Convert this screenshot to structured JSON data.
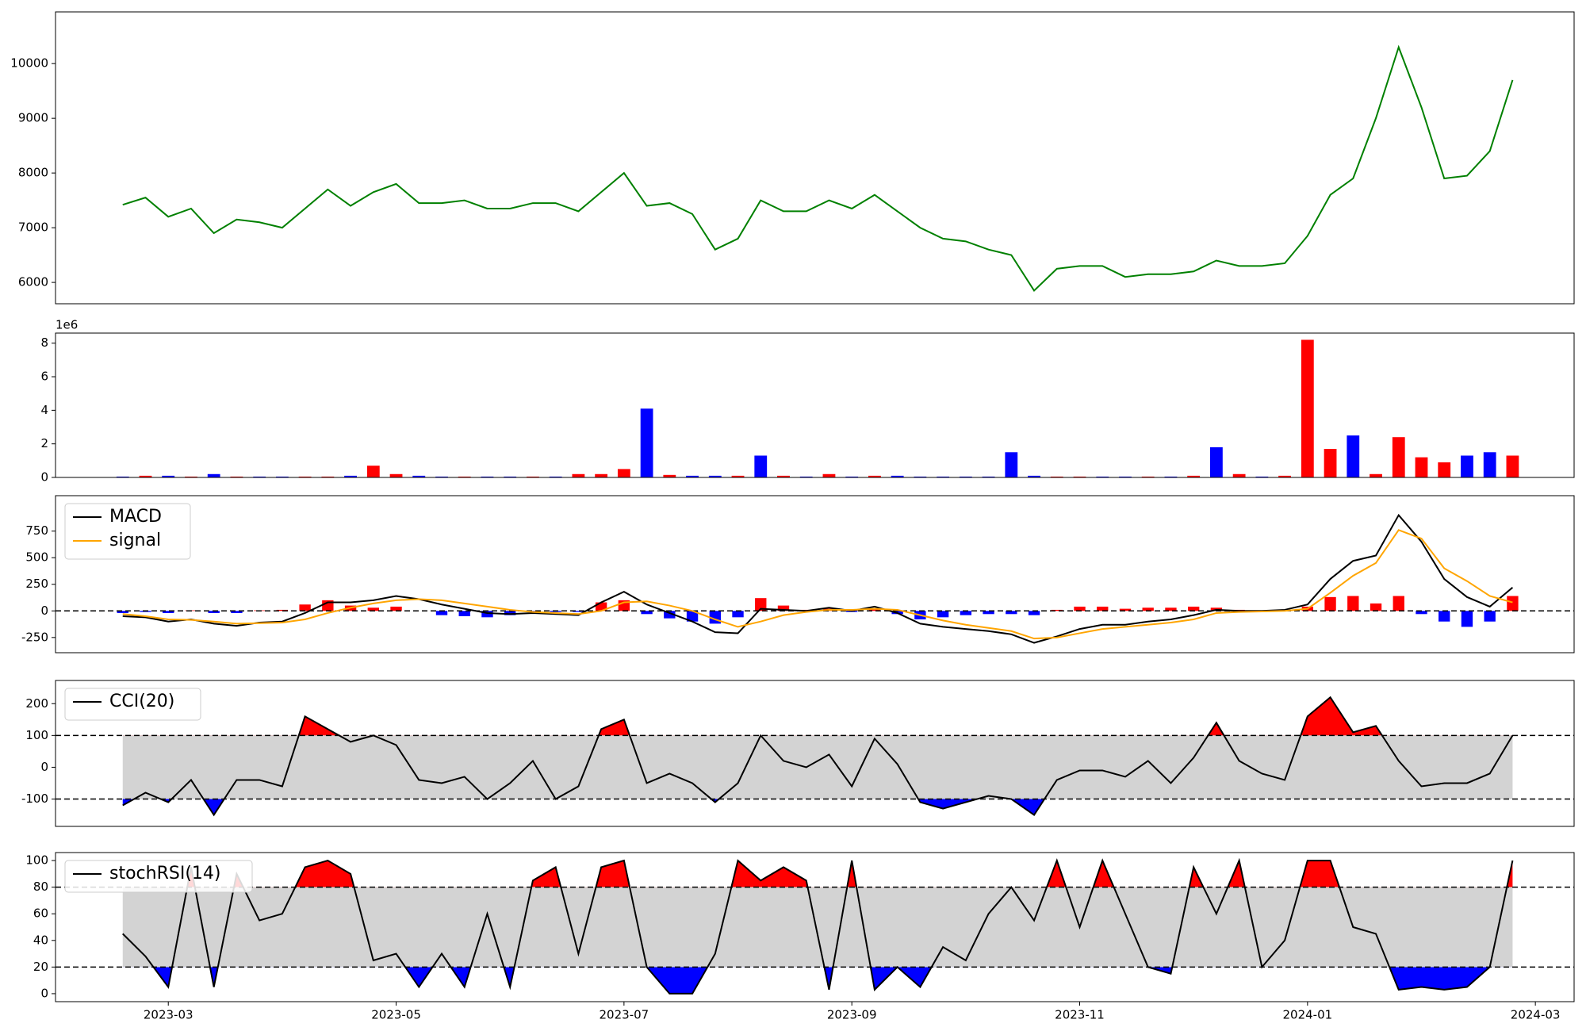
{
  "chart_data": [
    {
      "type": "line",
      "color": "green",
      "x": [
        2.6,
        2.8,
        3.0,
        3.2,
        3.4,
        3.6,
        3.8,
        4.0,
        4.2,
        4.4,
        4.6,
        4.8,
        5.0,
        5.2,
        5.4,
        5.6,
        5.8,
        6.0,
        6.2,
        6.4,
        6.6,
        6.8,
        7.0,
        7.2,
        7.4,
        7.6,
        7.8,
        8.0,
        8.2,
        8.4,
        8.6,
        8.8,
        9.0,
        9.2,
        9.4,
        9.6,
        9.8,
        10.0,
        10.2,
        10.4,
        10.6,
        10.8,
        11.0,
        11.2,
        11.4,
        11.6,
        11.8,
        12.0,
        12.2,
        12.4,
        12.6,
        12.8,
        13.0,
        13.2,
        13.4,
        13.6,
        13.8,
        14.0,
        14.2,
        14.4,
        14.6,
        14.8
      ],
      "values": [
        7420,
        7550,
        7200,
        7350,
        6900,
        7150,
        7100,
        7000,
        7350,
        7700,
        7400,
        7650,
        7800,
        7450,
        7450,
        7500,
        7350,
        7350,
        7450,
        7450,
        7300,
        7650,
        8000,
        7400,
        7450,
        7250,
        6600,
        6800,
        7500,
        7300,
        7300,
        7500,
        7350,
        7600,
        7300,
        7000,
        6800,
        6750,
        6600,
        6500,
        5850,
        6250,
        6300,
        6300,
        6100,
        6150,
        6150,
        6200,
        6400,
        6300,
        6300,
        6350,
        6850,
        7600,
        7900,
        9000,
        10300,
        9200,
        7900,
        7950,
        8400,
        9700
      ],
      "xlim": [
        2.01,
        15.34
      ],
      "ylim": [
        5610,
        10945
      ],
      "yticks": [
        6000,
        7000,
        8000,
        9000,
        10000
      ]
    },
    {
      "type": "bar",
      "offset_label": "1e6",
      "x": [
        2.6,
        2.8,
        3.0,
        3.2,
        3.4,
        3.6,
        3.8,
        4.0,
        4.2,
        4.4,
        4.6,
        4.8,
        5.0,
        5.2,
        5.4,
        5.6,
        5.8,
        6.0,
        6.2,
        6.4,
        6.6,
        6.8,
        7.0,
        7.2,
        7.4,
        7.6,
        7.8,
        8.0,
        8.2,
        8.4,
        8.6,
        8.8,
        9.0,
        9.2,
        9.4,
        9.6,
        9.8,
        10.0,
        10.2,
        10.4,
        10.6,
        10.8,
        11.0,
        11.2,
        11.4,
        11.6,
        11.8,
        12.0,
        12.2,
        12.4,
        12.6,
        12.8,
        13.0,
        13.2,
        13.4,
        13.6,
        13.8,
        14.0,
        14.2,
        14.4,
        14.6,
        14.8
      ],
      "values": [
        0.05,
        0.1,
        0.1,
        0.05,
        0.2,
        0.05,
        0.05,
        0.05,
        0.05,
        0.05,
        0.1,
        0.7,
        0.2,
        0.1,
        0.05,
        0.05,
        0.05,
        0.05,
        0.05,
        0.05,
        0.2,
        0.2,
        0.5,
        4.1,
        0.15,
        0.1,
        0.1,
        0.1,
        1.3,
        0.1,
        0.05,
        0.2,
        0.05,
        0.1,
        0.1,
        0.05,
        0.05,
        0.05,
        0.05,
        1.5,
        0.1,
        0.05,
        0.05,
        0.05,
        0.05,
        0.05,
        0.05,
        0.1,
        1.8,
        0.2,
        0.05,
        0.1,
        8.2,
        1.7,
        2.5,
        0.2,
        2.4,
        1.2,
        0.9,
        1.3,
        1.5,
        1.3
      ],
      "colors": [
        "blue",
        "red",
        "blue",
        "red",
        "blue",
        "red",
        "blue",
        "blue",
        "red",
        "red",
        "blue",
        "red",
        "red",
        "blue",
        "blue",
        "red",
        "blue",
        "blue",
        "red",
        "blue",
        "red",
        "red",
        "red",
        "blue",
        "red",
        "blue",
        "blue",
        "red",
        "blue",
        "red",
        "blue",
        "red",
        "blue",
        "red",
        "blue",
        "blue",
        "blue",
        "blue",
        "blue",
        "blue",
        "blue",
        "red",
        "red",
        "blue",
        "blue",
        "red",
        "blue",
        "red",
        "blue",
        "red",
        "blue",
        "red",
        "red",
        "red",
        "blue",
        "red",
        "red",
        "red",
        "red",
        "blue",
        "blue",
        "red"
      ],
      "xlim": [
        2.01,
        15.34
      ],
      "ylim": [
        0,
        8.6
      ],
      "yticks": [
        0,
        2,
        4,
        6,
        8
      ]
    },
    {
      "type": "macd",
      "legend": "upper left",
      "reference_line": 0,
      "x": [
        2.6,
        2.8,
        3.0,
        3.2,
        3.4,
        3.6,
        3.8,
        4.0,
        4.2,
        4.4,
        4.6,
        4.8,
        5.0,
        5.2,
        5.4,
        5.6,
        5.8,
        6.0,
        6.2,
        6.4,
        6.6,
        6.8,
        7.0,
        7.2,
        7.4,
        7.6,
        7.8,
        8.0,
        8.2,
        8.4,
        8.6,
        8.8,
        9.0,
        9.2,
        9.4,
        9.6,
        9.8,
        10.0,
        10.2,
        10.4,
        10.6,
        10.8,
        11.0,
        11.2,
        11.4,
        11.6,
        11.8,
        12.0,
        12.2,
        12.4,
        12.6,
        12.8,
        13.0,
        13.2,
        13.4,
        13.6,
        13.8,
        14.0,
        14.2,
        14.4,
        14.6,
        14.8
      ],
      "series": [
        {
          "name": "MACD",
          "color": "black",
          "values": [
            -50,
            -60,
            -100,
            -80,
            -120,
            -140,
            -110,
            -100,
            -20,
            80,
            80,
            100,
            140,
            110,
            60,
            20,
            -20,
            -30,
            -20,
            -30,
            -40,
            80,
            180,
            60,
            -20,
            -100,
            -200,
            -210,
            20,
            10,
            0,
            30,
            0,
            40,
            -20,
            -120,
            -150,
            -170,
            -190,
            -220,
            -300,
            -240,
            -170,
            -130,
            -130,
            -100,
            -80,
            -40,
            10,
            0,
            0,
            10,
            60,
            300,
            470,
            520,
            900,
            650,
            300,
            130,
            40,
            220
          ]
        },
        {
          "name": "signal",
          "color": "orange",
          "values": [
            -30,
            -50,
            -80,
            -85,
            -100,
            -120,
            -115,
            -110,
            -80,
            -20,
            30,
            70,
            100,
            110,
            100,
            70,
            40,
            10,
            -10,
            -20,
            -30,
            0,
            80,
            90,
            50,
            0,
            -80,
            -150,
            -100,
            -40,
            -10,
            10,
            10,
            20,
            10,
            -40,
            -90,
            -130,
            -160,
            -190,
            -260,
            -250,
            -210,
            -170,
            -150,
            -130,
            -110,
            -80,
            -20,
            -10,
            -5,
            0,
            20,
            170,
            330,
            450,
            760,
            680,
            400,
            280,
            140,
            80
          ]
        }
      ],
      "histogram": {
        "positive_color": "red",
        "negative_color": "blue",
        "values": [
          -20,
          -10,
          -20,
          5,
          -20,
          -20,
          5,
          10,
          60,
          100,
          50,
          30,
          40,
          0,
          -40,
          -50,
          -60,
          -40,
          -10,
          -10,
          -10,
          80,
          100,
          -30,
          -70,
          -100,
          -120,
          -60,
          120,
          50,
          10,
          20,
          -10,
          20,
          -30,
          -80,
          -60,
          -40,
          -30,
          -30,
          -40,
          10,
          40,
          40,
          20,
          30,
          30,
          40,
          30,
          10,
          5,
          10,
          40,
          130,
          140,
          70,
          140,
          -30,
          -100,
          -150,
          -100,
          140
        ]
      },
      "xlim": [
        2.01,
        15.34
      ],
      "ylim": [
        -393,
        1083
      ],
      "yticks": [
        -250,
        0,
        250,
        500,
        750
      ]
    },
    {
      "type": "band",
      "legend": "upper left",
      "levels": [
        -100,
        100
      ],
      "above_color": "red",
      "below_color": "blue",
      "band_color": "lightgray",
      "x": [
        2.6,
        2.8,
        3.0,
        3.2,
        3.4,
        3.6,
        3.8,
        4.0,
        4.2,
        4.4,
        4.6,
        4.8,
        5.0,
        5.2,
        5.4,
        5.6,
        5.8,
        6.0,
        6.2,
        6.4,
        6.6,
        6.8,
        7.0,
        7.2,
        7.4,
        7.6,
        7.8,
        8.0,
        8.2,
        8.4,
        8.6,
        8.8,
        9.0,
        9.2,
        9.4,
        9.6,
        9.8,
        10.0,
        10.2,
        10.4,
        10.6,
        10.8,
        11.0,
        11.2,
        11.4,
        11.6,
        11.8,
        12.0,
        12.2,
        12.4,
        12.6,
        12.8,
        13.0,
        13.2,
        13.4,
        13.6,
        13.8,
        14.0,
        14.2,
        14.4,
        14.6,
        14.8
      ],
      "series": [
        {
          "name": "CCI(20)",
          "color": "black",
          "values": [
            -120,
            -80,
            -110,
            -40,
            -150,
            -40,
            -40,
            -60,
            160,
            120,
            80,
            100,
            70,
            -40,
            -50,
            -30,
            -100,
            -50,
            20,
            -100,
            -60,
            120,
            150,
            -50,
            -20,
            -50,
            -110,
            -50,
            100,
            20,
            0,
            40,
            -60,
            90,
            10,
            -110,
            -130,
            -110,
            -90,
            -100,
            -150,
            -40,
            -10,
            -10,
            -30,
            20,
            -50,
            30,
            140,
            20,
            -20,
            -40,
            160,
            220,
            110,
            130,
            20,
            -60,
            -50,
            -50,
            -20,
            100
          ]
        }
      ],
      "xlim": [
        2.01,
        15.34
      ],
      "ylim": [
        -186,
        273
      ],
      "yticks": [
        -100,
        0,
        100,
        200
      ]
    },
    {
      "type": "band",
      "legend": "upper left",
      "levels": [
        20,
        80
      ],
      "above_color": "red",
      "below_color": "blue",
      "band_color": "lightgray",
      "x": [
        2.6,
        2.8,
        3.0,
        3.2,
        3.4,
        3.6,
        3.8,
        4.0,
        4.2,
        4.4,
        4.6,
        4.8,
        5.0,
        5.2,
        5.4,
        5.6,
        5.8,
        6.0,
        6.2,
        6.4,
        6.6,
        6.8,
        7.0,
        7.2,
        7.4,
        7.6,
        7.8,
        8.0,
        8.2,
        8.4,
        8.6,
        8.8,
        9.0,
        9.2,
        9.4,
        9.6,
        9.8,
        10.0,
        10.2,
        10.4,
        10.6,
        10.8,
        11.0,
        11.2,
        11.4,
        11.6,
        11.8,
        12.0,
        12.2,
        12.4,
        12.6,
        12.8,
        13.0,
        13.2,
        13.4,
        13.6,
        13.8,
        14.0,
        14.2,
        14.4,
        14.6,
        14.8
      ],
      "series": [
        {
          "name": "stochRSI(14)",
          "color": "black",
          "values": [
            45,
            28,
            5,
            95,
            5,
            90,
            55,
            60,
            95,
            100,
            90,
            25,
            30,
            5,
            30,
            5,
            60,
            5,
            85,
            95,
            30,
            95,
            100,
            20,
            0,
            0,
            30,
            100,
            85,
            95,
            85,
            3,
            100,
            3,
            20,
            5,
            35,
            25,
            60,
            80,
            55,
            100,
            50,
            100,
            60,
            20,
            15,
            95,
            60,
            100,
            20,
            40,
            100,
            100,
            50,
            45,
            3,
            5,
            3,
            5,
            20,
            100
          ]
        }
      ],
      "xlim": [
        2.01,
        15.34
      ],
      "ylim": [
        -6,
        106
      ],
      "yticks": [
        0,
        20,
        40,
        60,
        80,
        100
      ],
      "xticks": [
        {
          "value": 3,
          "label": "2023-03"
        },
        {
          "value": 5,
          "label": "2023-05"
        },
        {
          "value": 7,
          "label": "2023-07"
        },
        {
          "value": 9,
          "label": "2023-09"
        },
        {
          "value": 11,
          "label": "2023-11"
        },
        {
          "value": 13,
          "label": "2024-01"
        },
        {
          "value": 15,
          "label": "2024-03"
        }
      ]
    }
  ]
}
